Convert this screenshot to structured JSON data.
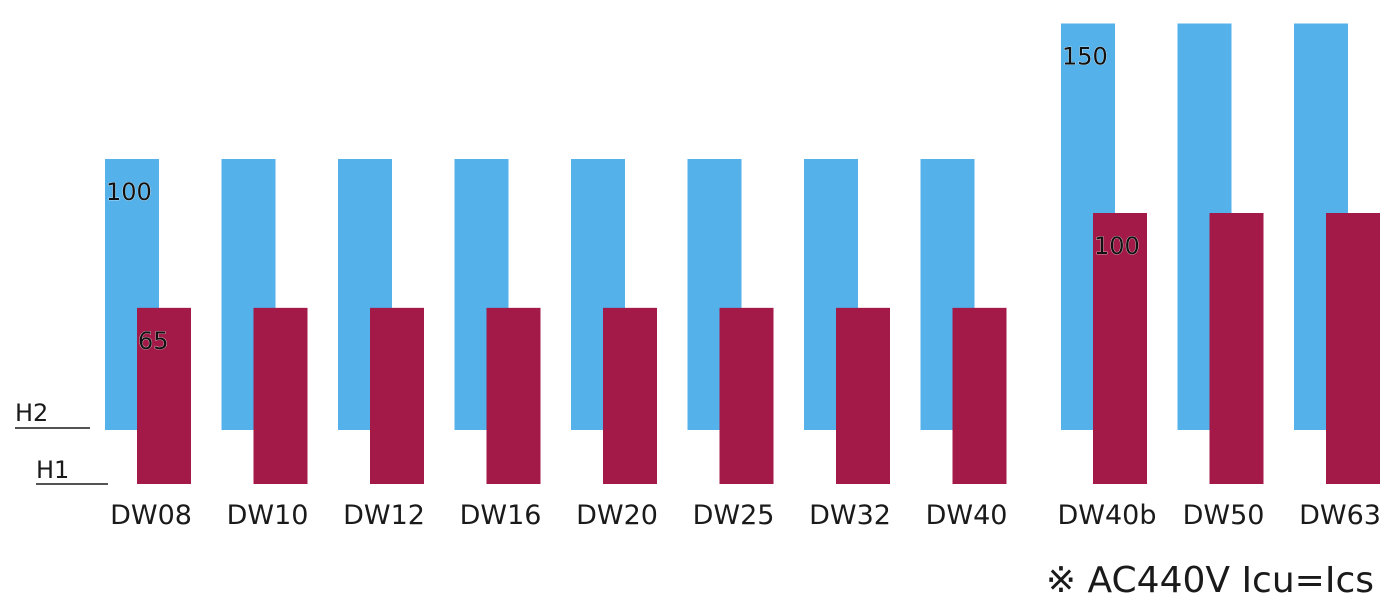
{
  "chart_data": {
    "type": "bar",
    "categories": [
      "DW08",
      "DW10",
      "DW12",
      "DW16",
      "DW20",
      "DW25",
      "DW32",
      "DW40",
      "DW40b",
      "DW50",
      "DW63"
    ],
    "row_labels": [
      "H2",
      "H1"
    ],
    "series": [
      {
        "values": [
          100,
          100,
          100,
          100,
          100,
          100,
          100,
          100,
          150,
          150,
          150
        ],
        "color": "#54b1ea"
      },
      {
        "values": [
          65,
          65,
          65,
          65,
          65,
          65,
          65,
          65,
          100,
          100,
          100
        ],
        "color": "#a31a48"
      }
    ],
    "data_labels": [
      {
        "series": 0,
        "index": 0,
        "text": "100"
      },
      {
        "series": 0,
        "index": 8,
        "text": "150"
      },
      {
        "series": 1,
        "index": 0,
        "text": "65"
      },
      {
        "series": 1,
        "index": 8,
        "text": "100"
      }
    ],
    "note": "※ AC440V Icu=Ics",
    "title": "",
    "xlabel": "",
    "ylabel": ""
  }
}
